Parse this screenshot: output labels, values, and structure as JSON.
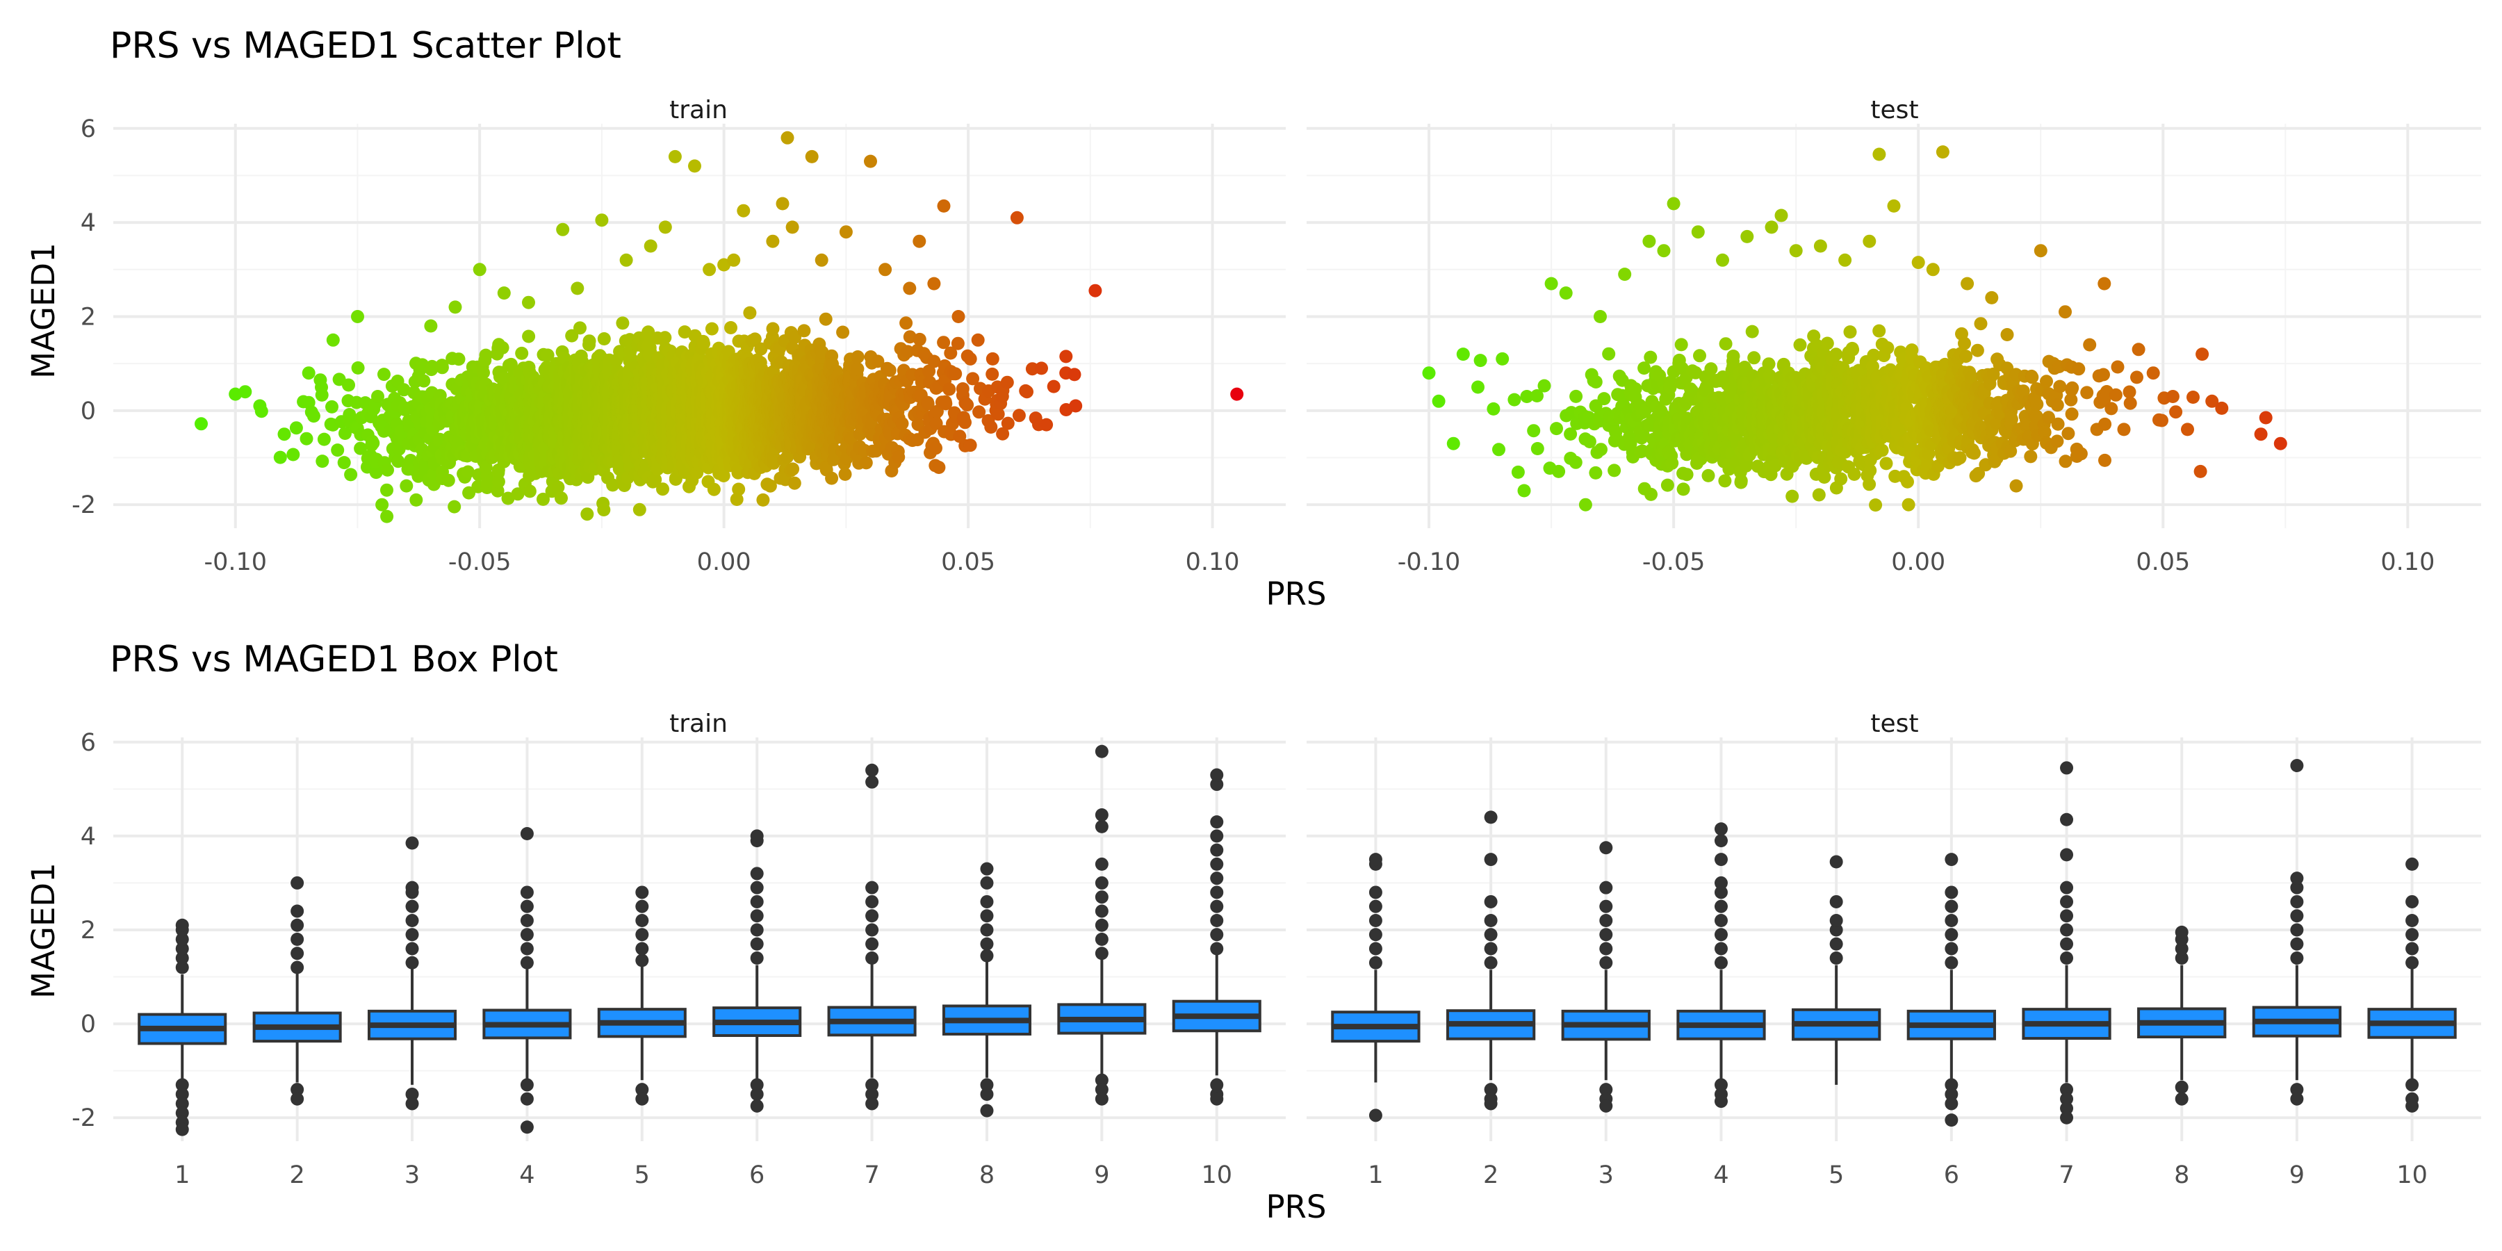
{
  "chart_data": [
    {
      "type": "scatter",
      "title": "PRS vs MAGED1 Scatter Plot",
      "xlabel": "PRS",
      "ylabel": "MAGED1",
      "xlim": [
        -0.125,
        0.115
      ],
      "ylim": [
        -2.5,
        6.1
      ],
      "x_ticks": [
        -0.1,
        -0.05,
        0.0,
        0.05,
        0.1
      ],
      "x_tick_labels": [
        "-0.10",
        "-0.05",
        "0.00",
        "0.05",
        "0.10"
      ],
      "y_ticks": [
        -2,
        0,
        2,
        4,
        6
      ],
      "y_tick_labels": [
        "-2",
        "0",
        "2",
        "4",
        "6"
      ],
      "grid": true,
      "color_scale": {
        "low": "#55ee00",
        "mid": "#bdb800",
        "high": "#e8000e",
        "by": "PRS"
      },
      "panels": [
        {
          "name": "train",
          "cloud": {
            "x_mean": -0.012,
            "x_sd": 0.026,
            "y_sd": 0.62,
            "n": 3800
          },
          "points": [
            [
              -0.107,
              -0.28
            ],
            [
              -0.1,
              0.35
            ],
            [
              -0.098,
              0.4
            ],
            [
              -0.095,
              0.1
            ],
            [
              -0.09,
              -0.5
            ],
            [
              -0.085,
              0.8
            ],
            [
              -0.08,
              1.5
            ],
            [
              -0.075,
              2.0
            ],
            [
              -0.073,
              -1.2
            ],
            [
              -0.07,
              -2.0
            ],
            [
              -0.069,
              -2.25
            ],
            [
              -0.065,
              -1.6
            ],
            [
              -0.063,
              -1.9
            ],
            [
              -0.06,
              1.8
            ],
            [
              -0.055,
              2.2
            ],
            [
              -0.05,
              3.0
            ],
            [
              -0.045,
              2.5
            ],
            [
              -0.04,
              2.3
            ],
            [
              -0.033,
              3.85
            ],
            [
              -0.03,
              2.6
            ],
            [
              -0.028,
              -2.2
            ],
            [
              -0.025,
              4.05
            ],
            [
              -0.02,
              3.2
            ],
            [
              -0.015,
              3.5
            ],
            [
              -0.012,
              3.9
            ],
            [
              -0.01,
              5.4
            ],
            [
              -0.006,
              5.2
            ],
            [
              -0.003,
              3.0
            ],
            [
              0.0,
              3.1
            ],
            [
              0.002,
              3.2
            ],
            [
              0.004,
              4.25
            ],
            [
              0.008,
              -1.9
            ],
            [
              0.01,
              3.6
            ],
            [
              0.012,
              4.4
            ],
            [
              0.013,
              5.8
            ],
            [
              0.014,
              3.9
            ],
            [
              0.018,
              5.4
            ],
            [
              0.02,
              3.2
            ],
            [
              0.025,
              3.8
            ],
            [
              0.03,
              5.3
            ],
            [
              0.033,
              3.0
            ],
            [
              0.035,
              -1.1
            ],
            [
              0.038,
              2.6
            ],
            [
              0.04,
              3.6
            ],
            [
              0.043,
              2.7
            ],
            [
              0.045,
              4.35
            ],
            [
              0.048,
              2.0
            ],
            [
              0.052,
              1.5
            ],
            [
              0.055,
              1.1
            ],
            [
              0.058,
              0.6
            ],
            [
              0.06,
              4.1
            ],
            [
              0.062,
              0.4
            ],
            [
              0.065,
              0.9
            ],
            [
              0.066,
              -0.3
            ],
            [
              0.07,
              0.8
            ],
            [
              0.072,
              0.1
            ],
            [
              0.076,
              2.55
            ],
            [
              0.105,
              0.35
            ]
          ]
        },
        {
          "name": "test",
          "cloud": {
            "x_mean": -0.018,
            "x_sd": 0.024,
            "y_sd": 0.58,
            "n": 1600
          },
          "points": [
            [
              -0.1,
              0.8
            ],
            [
              -0.098,
              0.2
            ],
            [
              -0.095,
              -0.7
            ],
            [
              -0.093,
              1.2
            ],
            [
              -0.09,
              0.5
            ],
            [
              -0.085,
              1.1
            ],
            [
              -0.08,
              0.3
            ],
            [
              -0.075,
              2.7
            ],
            [
              -0.072,
              2.5
            ],
            [
              -0.07,
              -1.1
            ],
            [
              -0.068,
              -2.0
            ],
            [
              -0.065,
              2.0
            ],
            [
              -0.06,
              2.9
            ],
            [
              -0.055,
              3.6
            ],
            [
              -0.052,
              3.4
            ],
            [
              -0.05,
              4.4
            ],
            [
              -0.045,
              3.8
            ],
            [
              -0.04,
              3.2
            ],
            [
              -0.035,
              3.7
            ],
            [
              -0.03,
              3.9
            ],
            [
              -0.028,
              4.15
            ],
            [
              -0.025,
              3.4
            ],
            [
              -0.02,
              3.5
            ],
            [
              -0.015,
              3.2
            ],
            [
              -0.01,
              3.6
            ],
            [
              -0.008,
              5.45
            ],
            [
              -0.005,
              4.35
            ],
            [
              -0.002,
              -2.0
            ],
            [
              0.0,
              3.15
            ],
            [
              0.003,
              3.0
            ],
            [
              0.005,
              5.5
            ],
            [
              0.01,
              2.7
            ],
            [
              0.015,
              2.4
            ],
            [
              0.02,
              -1.6
            ],
            [
              0.025,
              3.4
            ],
            [
              0.03,
              2.1
            ],
            [
              0.035,
              1.4
            ],
            [
              0.038,
              2.7
            ],
            [
              0.042,
              -0.4
            ],
            [
              0.045,
              1.3
            ],
            [
              0.048,
              0.8
            ],
            [
              0.052,
              0.3
            ],
            [
              0.055,
              -0.4
            ],
            [
              0.058,
              1.2
            ],
            [
              0.06,
              0.2
            ],
            [
              0.062,
              0.05
            ],
            [
              0.07,
              -0.5
            ],
            [
              0.071,
              -0.15
            ],
            [
              0.074,
              -0.7
            ]
          ]
        }
      ]
    },
    {
      "type": "box",
      "title": "PRS vs MAGED1 Box Plot",
      "xlabel": "PRS",
      "ylabel": "MAGED1",
      "categories": [
        "1",
        "2",
        "3",
        "4",
        "5",
        "6",
        "7",
        "8",
        "9",
        "10"
      ],
      "ylim": [
        -2.5,
        6.1
      ],
      "y_ticks": [
        -2,
        0,
        2,
        4,
        6
      ],
      "y_tick_labels": [
        "-2",
        "0",
        "2",
        "4",
        "6"
      ],
      "grid": true,
      "box_color": "#1e90ff",
      "panels": [
        {
          "name": "train",
          "boxes": [
            {
              "q1": -0.42,
              "median": -0.1,
              "q3": 0.2,
              "lower": -1.2,
              "upper": 1.05,
              "outliers": [
                1.2,
                1.4,
                1.6,
                1.8,
                2.0,
                2.1,
                -1.3,
                -1.5,
                -1.7,
                -1.9,
                -2.1,
                -2.25
              ]
            },
            {
              "q1": -0.37,
              "median": -0.07,
              "q3": 0.23,
              "lower": -1.25,
              "upper": 1.1,
              "outliers": [
                1.2,
                1.5,
                1.8,
                2.1,
                2.4,
                3.0,
                -1.4,
                -1.6
              ]
            },
            {
              "q1": -0.32,
              "median": -0.03,
              "q3": 0.27,
              "lower": -1.3,
              "upper": 1.2,
              "outliers": [
                1.3,
                1.6,
                1.9,
                2.2,
                2.5,
                2.8,
                2.9,
                3.85,
                -1.5,
                -1.7
              ]
            },
            {
              "q1": -0.3,
              "median": -0.02,
              "q3": 0.29,
              "lower": -1.25,
              "upper": 1.2,
              "outliers": [
                1.3,
                1.6,
                1.9,
                2.2,
                2.5,
                2.8,
                4.05,
                -1.3,
                -1.6,
                -2.2
              ]
            },
            {
              "q1": -0.27,
              "median": 0.02,
              "q3": 0.31,
              "lower": -1.2,
              "upper": 1.25,
              "outliers": [
                1.35,
                1.6,
                1.9,
                2.2,
                2.5,
                2.8,
                -1.4,
                -1.6
              ]
            },
            {
              "q1": -0.25,
              "median": 0.03,
              "q3": 0.34,
              "lower": -1.2,
              "upper": 1.25,
              "outliers": [
                1.4,
                1.7,
                2.0,
                2.3,
                2.6,
                2.9,
                3.2,
                3.9,
                4.0,
                -1.3,
                -1.5,
                -1.75
              ]
            },
            {
              "q1": -0.24,
              "median": 0.05,
              "q3": 0.35,
              "lower": -1.15,
              "upper": 1.3,
              "outliers": [
                1.4,
                1.7,
                2.0,
                2.3,
                2.6,
                2.9,
                5.15,
                5.4,
                -1.3,
                -1.5,
                -1.7
              ]
            },
            {
              "q1": -0.22,
              "median": 0.07,
              "q3": 0.38,
              "lower": -1.15,
              "upper": 1.35,
              "outliers": [
                1.45,
                1.7,
                2.0,
                2.3,
                2.6,
                3.0,
                3.3,
                -1.3,
                -1.5,
                -1.85
              ]
            },
            {
              "q1": -0.2,
              "median": 0.09,
              "q3": 0.41,
              "lower": -1.1,
              "upper": 1.4,
              "outliers": [
                1.5,
                1.8,
                2.1,
                2.4,
                2.7,
                3.0,
                3.4,
                4.2,
                4.45,
                5.8,
                -1.2,
                -1.4,
                -1.6
              ]
            },
            {
              "q1": -0.15,
              "median": 0.16,
              "q3": 0.48,
              "lower": -1.1,
              "upper": 1.5,
              "outliers": [
                1.6,
                1.9,
                2.2,
                2.5,
                2.8,
                3.1,
                3.4,
                3.7,
                4.0,
                4.3,
                5.1,
                5.3,
                -1.3,
                -1.5,
                -1.6
              ]
            }
          ]
        },
        {
          "name": "test",
          "boxes": [
            {
              "q1": -0.37,
              "median": -0.06,
              "q3": 0.25,
              "lower": -1.25,
              "upper": 1.15,
              "outliers": [
                1.3,
                1.6,
                1.9,
                2.2,
                2.5,
                2.8,
                3.4,
                3.5,
                -1.95
              ]
            },
            {
              "q1": -0.32,
              "median": 0.0,
              "q3": 0.28,
              "lower": -1.2,
              "upper": 1.15,
              "outliers": [
                1.3,
                1.6,
                1.9,
                2.2,
                2.6,
                3.5,
                4.4,
                -1.4,
                -1.6,
                -1.7
              ]
            },
            {
              "q1": -0.33,
              "median": -0.02,
              "q3": 0.27,
              "lower": -1.2,
              "upper": 1.15,
              "outliers": [
                1.3,
                1.6,
                1.9,
                2.2,
                2.5,
                2.9,
                3.75,
                -1.4,
                -1.6,
                -1.75
              ]
            },
            {
              "q1": -0.32,
              "median": -0.03,
              "q3": 0.27,
              "lower": -1.2,
              "upper": 1.15,
              "outliers": [
                1.3,
                1.6,
                1.9,
                2.2,
                2.5,
                2.8,
                3.0,
                3.5,
                3.9,
                4.15,
                -1.3,
                -1.5,
                -1.65
              ]
            },
            {
              "q1": -0.33,
              "median": 0.0,
              "q3": 0.3,
              "lower": -1.3,
              "upper": 1.25,
              "outliers": [
                1.4,
                1.7,
                2.0,
                2.2,
                2.6,
                3.45
              ]
            },
            {
              "q1": -0.32,
              "median": -0.03,
              "q3": 0.27,
              "lower": -1.2,
              "upper": 1.15,
              "outliers": [
                1.3,
                1.6,
                1.9,
                2.2,
                2.5,
                2.8,
                3.5,
                -1.3,
                -1.5,
                -1.7,
                -2.05
              ]
            },
            {
              "q1": -0.31,
              "median": 0.0,
              "q3": 0.31,
              "lower": -1.25,
              "upper": 1.25,
              "outliers": [
                1.4,
                1.7,
                2.0,
                2.3,
                2.6,
                2.9,
                3.6,
                4.35,
                5.45,
                -1.4,
                -1.6,
                -1.8,
                -2.0
              ]
            },
            {
              "q1": -0.28,
              "median": 0.02,
              "q3": 0.32,
              "lower": -1.2,
              "upper": 1.25,
              "outliers": [
                1.4,
                1.6,
                1.8,
                1.95,
                -1.35,
                -1.6
              ]
            },
            {
              "q1": -0.26,
              "median": 0.05,
              "q3": 0.35,
              "lower": -1.2,
              "upper": 1.25,
              "outliers": [
                1.4,
                1.7,
                2.0,
                2.3,
                2.6,
                2.9,
                3.1,
                5.5,
                -1.4,
                -1.6
              ]
            },
            {
              "q1": -0.29,
              "median": 0.01,
              "q3": 0.31,
              "lower": -1.2,
              "upper": 1.2,
              "outliers": [
                1.3,
                1.6,
                1.9,
                2.2,
                2.6,
                3.4,
                -1.3,
                -1.6,
                -1.75
              ]
            }
          ]
        }
      ]
    }
  ]
}
